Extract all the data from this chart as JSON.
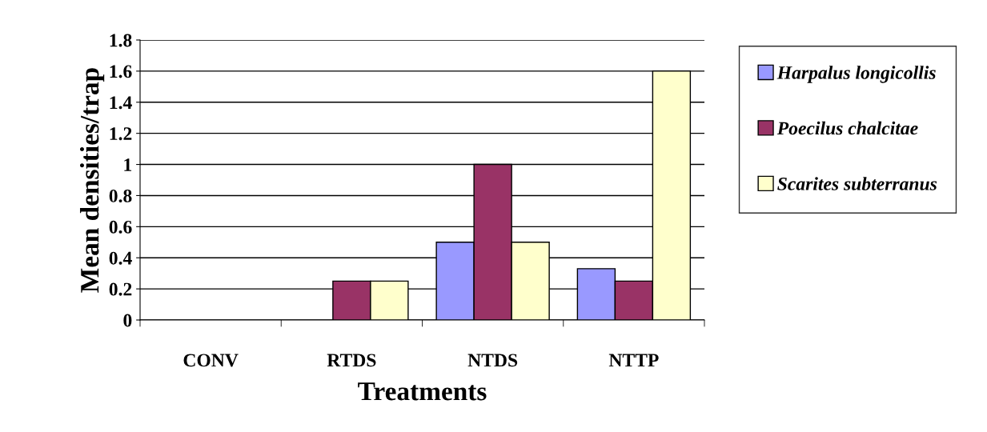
{
  "chart_data": {
    "type": "bar",
    "xlabel": "Treatments",
    "ylabel": "Mean densities/trap",
    "categories": [
      "CONV",
      "RTDS",
      "NTDS",
      "NTTP"
    ],
    "series": [
      {
        "name": "Harpalus longicollis",
        "color": "#9999ff",
        "values": [
          0,
          0,
          0.5,
          0.33
        ]
      },
      {
        "name": "Poecilus chalcitae",
        "color": "#993366",
        "values": [
          0,
          0.25,
          1,
          0.25
        ]
      },
      {
        "name": "Scarites subterranus",
        "color": "#ffffcc",
        "values": [
          0,
          0.25,
          0.5,
          1.6
        ]
      }
    ],
    "ylim": [
      0,
      1.8
    ],
    "yticks": [
      0,
      0.2,
      0.4,
      0.6,
      0.8,
      1,
      1.2,
      1.4,
      1.6,
      1.8
    ],
    "grid": "y",
    "legend": "right"
  }
}
